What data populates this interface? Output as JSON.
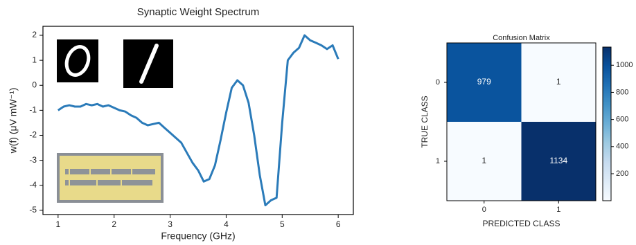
{
  "chart_data": [
    {
      "type": "line",
      "title": "Synaptic Weight Spectrum",
      "x_label": "Frequency (GHz)",
      "y_label": "w(f) (μV mW⁻¹)",
      "color": "#2b7bb9",
      "x": [
        1,
        1.1,
        1.2,
        1.3,
        1.4,
        1.5,
        1.6,
        1.7,
        1.8,
        1.9,
        2,
        2.1,
        2.2,
        2.3,
        2.4,
        2.5,
        2.6,
        2.7,
        2.8,
        2.9,
        3,
        3.1,
        3.2,
        3.3,
        3.4,
        3.5,
        3.6,
        3.7,
        3.8,
        3.9,
        4,
        4.1,
        4.2,
        4.3,
        4.4,
        4.5,
        4.6,
        4.7,
        4.8,
        4.9,
        5,
        5.1,
        5.2,
        5.3,
        5.4,
        5.5,
        5.6,
        5.7,
        5.8,
        5.9,
        6
      ],
      "values": [
        -1,
        -0.85,
        -0.8,
        -0.85,
        -0.85,
        -0.75,
        -0.8,
        -0.75,
        -0.85,
        -0.8,
        -0.9,
        -1,
        -1.05,
        -1.2,
        -1.3,
        -1.5,
        -1.6,
        -1.55,
        -1.5,
        -1.7,
        -1.9,
        -2.1,
        -2.3,
        -2.7,
        -3.1,
        -3.4,
        -3.85,
        -3.75,
        -3.2,
        -2.2,
        -1.1,
        -0.1,
        0.2,
        0,
        -0.7,
        -2,
        -3.6,
        -4.8,
        -4.6,
        -4.5,
        -1.5,
        1,
        1.3,
        1.5,
        2,
        1.8,
        1.7,
        1.6,
        1.45,
        1.6,
        1.05
      ],
      "xlim": [
        0.73,
        6.27
      ],
      "xticks": [
        1,
        2,
        3,
        4,
        5,
        6
      ],
      "ylim": [
        -5.17,
        2.36
      ],
      "yticks": [
        -5,
        -4,
        -3,
        -2,
        -1,
        0,
        1,
        2
      ]
    },
    {
      "type": "heatmap",
      "title": "Confusion Matrix",
      "x_label": "PREDICTED CLASS",
      "y_label": "TRUE CLASS",
      "x_categories": [
        "0",
        "1"
      ],
      "y_categories": [
        "0",
        "1"
      ],
      "values": [
        [
          979,
          1
        ],
        [
          1,
          1134
        ]
      ],
      "colormap": [
        "#f7fbff",
        "#deebf7",
        "#c6dbef",
        "#9ecae1",
        "#6baed6",
        "#4292c6",
        "#2171b5",
        "#08519c",
        "#08306b"
      ],
      "clim": [
        1,
        1134
      ],
      "cticks": [
        200,
        400,
        600,
        800,
        1000
      ]
    }
  ]
}
